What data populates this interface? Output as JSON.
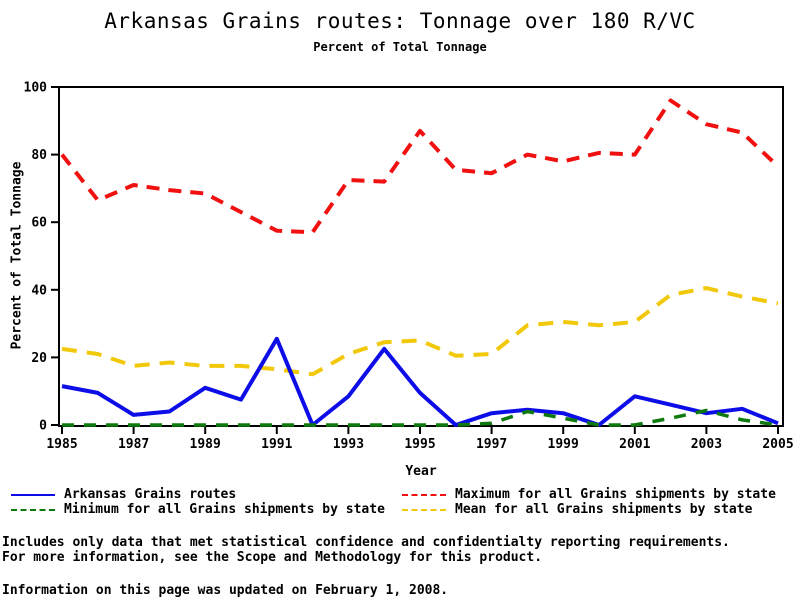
{
  "chart_data": {
    "type": "line",
    "title": "Arkansas Grains routes: Tonnage over 180 R/VC",
    "subtitle": "Percent of Total Tonnage",
    "xlabel": "Year",
    "ylabel": "Percent of Total Tonnage",
    "xlim": [
      1985,
      2005
    ],
    "ylim": [
      0,
      100
    ],
    "x_ticks": [
      1985,
      1987,
      1989,
      1991,
      1993,
      1995,
      1997,
      1999,
      2001,
      2003,
      2005
    ],
    "y_ticks": [
      0,
      20,
      40,
      60,
      80,
      100
    ],
    "grid": false,
    "legend_position": "bottom-two-columns",
    "x": [
      1985,
      1986,
      1987,
      1988,
      1989,
      1990,
      1991,
      1992,
      1993,
      1994,
      1995,
      1996,
      1997,
      1998,
      1999,
      2000,
      2001,
      2002,
      2003,
      2004,
      2005
    ],
    "series": [
      {
        "name": "Arkansas Grains routes",
        "color": "#0d0de8",
        "dash": "solid",
        "values": [
          11.5,
          9.5,
          3,
          4,
          11,
          7.5,
          25.5,
          0,
          8.5,
          22.5,
          9.5,
          0,
          3.5,
          4.5,
          3.5,
          0,
          8.5,
          6,
          3.5,
          4.8,
          0.5
        ]
      },
      {
        "name": "Minimum for all Grains shipments by state",
        "color": "#0e7a0e",
        "dash": "dashed",
        "values": [
          0,
          0,
          0,
          0,
          0,
          0,
          0,
          0,
          0,
          0,
          0,
          0,
          0.5,
          4,
          2,
          0,
          0,
          2,
          4.3,
          1.5,
          0
        ]
      },
      {
        "name": "Maximum for all Grains shipments by state",
        "color": "#f01010",
        "dash": "dashed",
        "values": [
          80,
          66.5,
          71,
          69.5,
          68.5,
          63,
          57.5,
          57,
          72.5,
          72,
          87,
          75.5,
          74.5,
          80,
          78,
          80.5,
          80,
          96,
          89,
          86.5,
          76.5
        ]
      },
      {
        "name": "Mean for all Grains shipments by state",
        "color": "#f2c80a",
        "dash": "dashed",
        "values": [
          22.5,
          21,
          17.5,
          18.5,
          17.5,
          17.5,
          16.5,
          15,
          21,
          24.5,
          25,
          20.5,
          21,
          29.5,
          30.5,
          29.5,
          30.5,
          38.5,
          40.5,
          38,
          36
        ]
      }
    ]
  },
  "notes": {
    "line1": "Includes only data that met statistical confidence and confidentialty reporting requirements.",
    "line2": "For more information, see the Scope and Methodology for this product.",
    "updated": "Information on this page was updated on February 1, 2008."
  }
}
